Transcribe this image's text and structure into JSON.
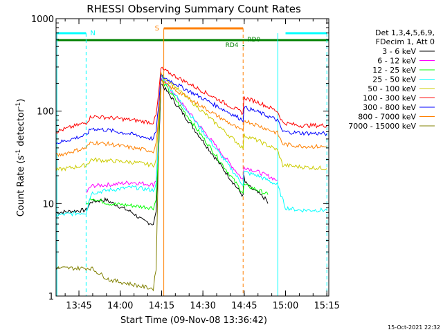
{
  "chart_data": {
    "type": "line",
    "title": "RHESSI Observing Summary Count Rates",
    "xlabel": "Start Time (09-Nov-08 13:36:42)",
    "ylabel_main": "Count Rate (s",
    "ylabel_sup1": "-1",
    "ylabel_mid": " detector",
    "ylabel_sup2": "-1",
    "ylabel_end": ")",
    "yscale": "log",
    "ylim": [
      1,
      1000
    ],
    "xlim_min": [
      816.7,
      915.7
    ],
    "x_ticks": [
      {
        "value": 825,
        "label": "13:45"
      },
      {
        "value": 840,
        "label": "14:00"
      },
      {
        "value": 855,
        "label": "14:15"
      },
      {
        "value": 870,
        "label": "14:30"
      },
      {
        "value": 885,
        "label": "14:45"
      },
      {
        "value": 900,
        "label": "15:00"
      },
      {
        "value": 915,
        "label": "15:15"
      }
    ],
    "y_ticks": [
      {
        "value": 1,
        "label": "1"
      },
      {
        "value": 10,
        "label": "10"
      },
      {
        "value": 100,
        "label": "100"
      },
      {
        "value": 1000,
        "label": "1000"
      }
    ],
    "legend": {
      "placement": "right",
      "header": [
        "Det 1,3,4,5,6,9,",
        "FDecim 1, Att 0"
      ]
    },
    "series": [
      {
        "name": "3 - 6 keV",
        "color": "#000000",
        "x": [
          816.7,
          827.6,
          829.5,
          834.9,
          836.0,
          844.4,
          848.3,
          852.0,
          853.0,
          854.0,
          854.8,
          884.6,
          884.9,
          885.3,
          887.0,
          890.0,
          893.0,
          893.6
        ],
        "y": [
          8.0,
          8.5,
          10.5,
          11.0,
          10.5,
          8.0,
          6.5,
          6.0,
          8.0,
          40.0,
          200.0,
          12.0,
          20.0,
          17.0,
          15.0,
          13.0,
          11.0,
          10.0
        ]
      },
      {
        "name": "6 - 12 keV",
        "color": "#ff00ff",
        "x": [
          827.6,
          829.5,
          836.0,
          844.4,
          852.0,
          853.0,
          854.0,
          854.8,
          884.6,
          884.9,
          890.0,
          897.0
        ],
        "y": [
          13.0,
          15.5,
          16.0,
          17.0,
          16.0,
          18.0,
          60.0,
          230.0,
          18.0,
          25.0,
          22.0,
          18.0
        ]
      },
      {
        "name": "12 - 25 keV",
        "color": "#00ff00",
        "x": [
          827.6,
          829.5,
          836.0,
          844.4,
          852.0,
          853.0,
          854.0,
          854.8,
          884.6,
          884.9,
          890.0,
          893.6
        ],
        "y": [
          9.5,
          11.5,
          10.0,
          9.5,
          9.0,
          11.0,
          45.0,
          220.0,
          13.0,
          16.0,
          14.0,
          12.5
        ]
      },
      {
        "name": "25 - 50 keV",
        "color": "#00ffff",
        "x": [
          816.7,
          827.6,
          829.5,
          836.0,
          844.4,
          852.0,
          853.0,
          854.0,
          854.8,
          884.6,
          884.9,
          890.0,
          897.0,
          900.0,
          905.0,
          915.0
        ],
        "y": [
          7.5,
          8.0,
          13.0,
          14.0,
          15.0,
          14.0,
          16.0,
          55.0,
          240.0,
          16.0,
          22.0,
          20.0,
          16.0,
          9.0,
          8.5,
          8.5
        ]
      },
      {
        "name": "50 - 100 keV",
        "color": "#cccc00",
        "x": [
          816.7,
          827.6,
          829.5,
          836.0,
          844.4,
          852.0,
          853.0,
          854.0,
          854.8,
          884.6,
          884.9,
          890.0,
          897.0,
          899.0,
          905.0,
          915.0
        ],
        "y": [
          23.0,
          26.0,
          30.0,
          29.0,
          28.0,
          26.0,
          30.0,
          80.0,
          250.0,
          40.0,
          55.0,
          48.0,
          38.0,
          26.0,
          25.0,
          24.0
        ]
      },
      {
        "name": "100 - 300 keV",
        "color": "#ff0000",
        "x": [
          816.7,
          827.6,
          829.5,
          836.0,
          844.4,
          852.0,
          853.0,
          854.0,
          854.8,
          884.6,
          884.9,
          890.0,
          897.0,
          899.0,
          905.0,
          915.0
        ],
        "y": [
          60.0,
          75.0,
          88.0,
          85.0,
          80.0,
          75.0,
          90.0,
          160.0,
          290.0,
          95.0,
          140.0,
          125.0,
          100.0,
          75.0,
          70.0,
          70.0
        ]
      },
      {
        "name": "300 - 800 keV",
        "color": "#0000ff",
        "x": [
          816.7,
          827.6,
          829.5,
          836.0,
          844.4,
          852.0,
          853.0,
          854.0,
          854.8,
          884.6,
          884.9,
          890.0,
          897.0,
          899.0,
          905.0,
          915.0
        ],
        "y": [
          45.0,
          55.0,
          65.0,
          62.0,
          56.0,
          50.0,
          60.0,
          120.0,
          240.0,
          80.0,
          110.0,
          98.0,
          80.0,
          60.0,
          58.0,
          57.0
        ]
      },
      {
        "name": "800 - 7000 keV",
        "color": "#ff8000",
        "x": [
          816.7,
          827.6,
          829.5,
          836.0,
          844.4,
          852.0,
          853.0,
          854.0,
          854.8,
          884.6,
          884.9,
          890.0,
          897.0,
          899.0,
          905.0,
          915.0
        ],
        "y": [
          33.0,
          40.0,
          46.0,
          44.0,
          40.0,
          37.0,
          45.0,
          90.0,
          210.0,
          60.0,
          80.0,
          70.0,
          58.0,
          44.0,
          42.0,
          41.0
        ]
      },
      {
        "name": "7000 - 15000 keV",
        "color": "#808000",
        "x": [
          816.7,
          827.6,
          829.5,
          836.0,
          852.0,
          853.0,
          853.5,
          854.2,
          854.8
        ],
        "y": [
          2.0,
          2.0,
          2.0,
          1.5,
          1.2,
          2.0,
          10.0,
          80.0,
          180.0
        ]
      }
    ],
    "annotations": {
      "night_bars": [
        {
          "label": "N",
          "x": [
            816.7,
            827.6
          ]
        },
        {
          "label": "",
          "x": [
            900.0,
            915.0
          ]
        }
      ],
      "saa_bar": {
        "label": "S",
        "x": [
          855.8,
          884.6
        ]
      },
      "attenuator_bar": {
        "x": [
          816.7,
          915.7
        ]
      },
      "markers": [
        {
          "label": "RD0",
          "x": 885.6
        },
        {
          "label": "RD4",
          "x": 884.7
        }
      ],
      "vlines_cyan": [
        817.0,
        827.6,
        897.2,
        915.0
      ],
      "vlines_orange": [
        855.8,
        884.6
      ]
    }
  },
  "footer": {
    "date_stamp": "15-Oct-2021 22:32"
  }
}
